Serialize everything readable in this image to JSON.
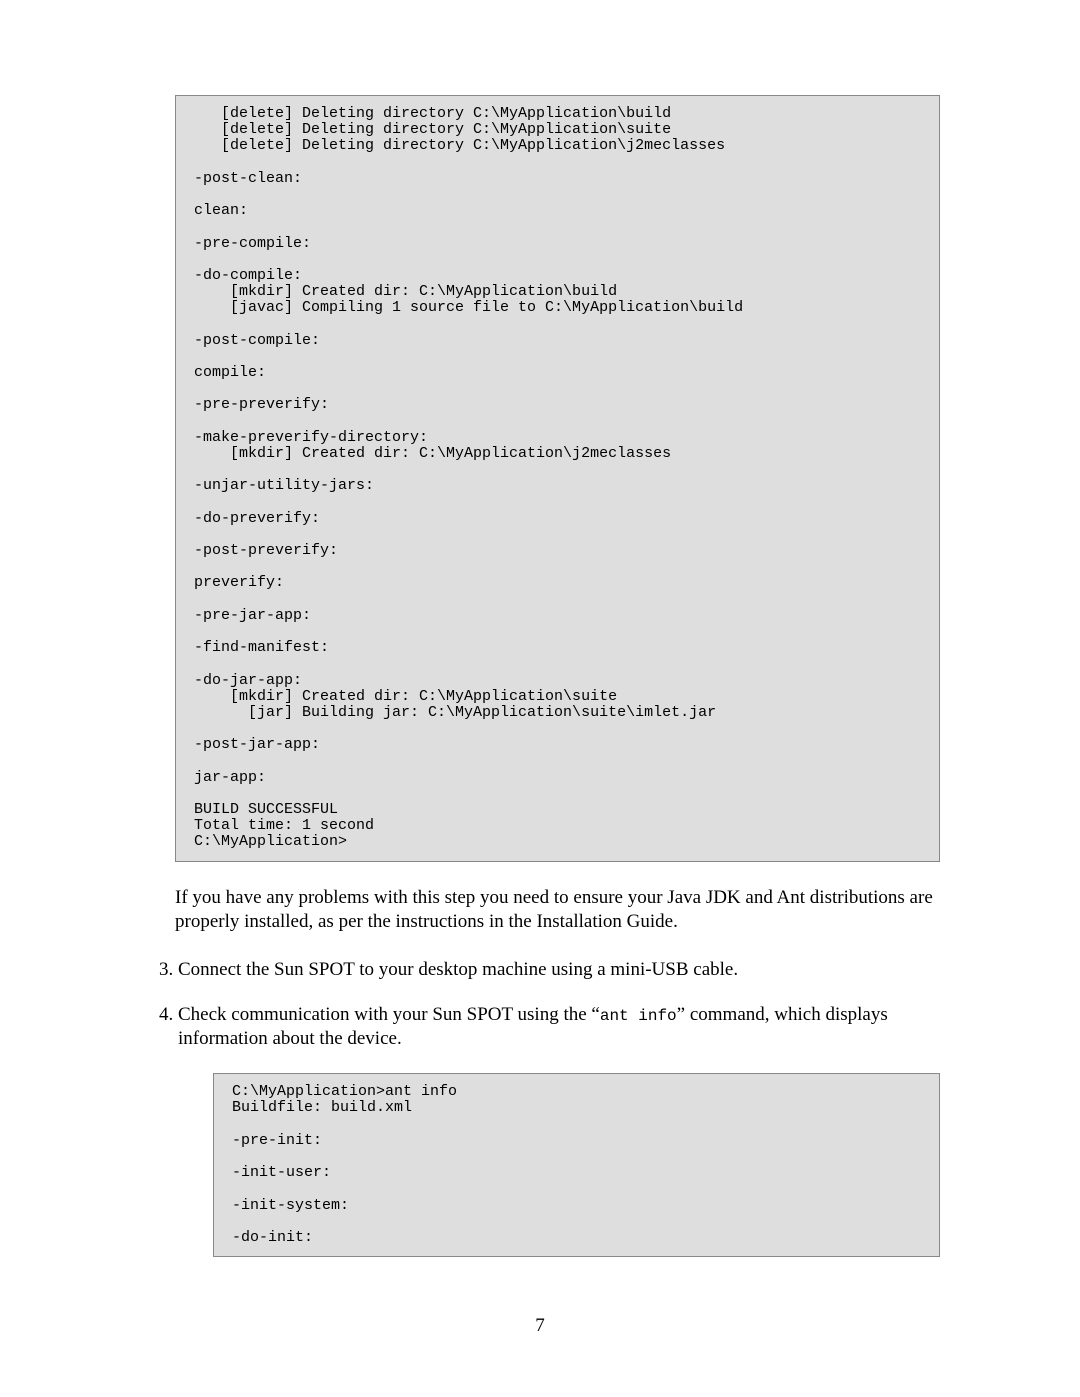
{
  "colors": {
    "page_bg": "#ffffff",
    "code_bg": "#dedede",
    "code_border": "#888888",
    "text": "#000000"
  },
  "typography": {
    "body_family": "Times New Roman",
    "body_size_pt": 12,
    "code_family": "Courier New",
    "code_size_pt": 10
  },
  "codeblock1": "   [delete] Deleting directory C:\\MyApplication\\build\n   [delete] Deleting directory C:\\MyApplication\\suite\n   [delete] Deleting directory C:\\MyApplication\\j2meclasses\n\n-post-clean:\n\nclean:\n\n-pre-compile:\n\n-do-compile:\n    [mkdir] Created dir: C:\\MyApplication\\build\n    [javac] Compiling 1 source file to C:\\MyApplication\\build\n\n-post-compile:\n\ncompile:\n\n-pre-preverify:\n\n-make-preverify-directory:\n    [mkdir] Created dir: C:\\MyApplication\\j2meclasses\n\n-unjar-utility-jars:\n\n-do-preverify:\n\n-post-preverify:\n\npreverify:\n\n-pre-jar-app:\n\n-find-manifest:\n\n-do-jar-app:\n    [mkdir] Created dir: C:\\MyApplication\\suite\n      [jar] Building jar: C:\\MyApplication\\suite\\imlet.jar\n\n-post-jar-app:\n\njar-app:\n\nBUILD SUCCESSFUL\nTotal time: 1 second\nC:\\MyApplication>",
  "paragraph_after_code1": "If you have any problems with this step you need to ensure your Java JDK and Ant distributions are properly installed, as per the instructions in the Installation Guide.",
  "list_start": 3,
  "step3": "Connect the Sun SPOT to your desktop machine using a mini-USB cable.",
  "step4_a": "Check communication with your Sun SPOT using the “",
  "step4_cmd": "ant info",
  "step4_b": "” command, which displays information about the device.",
  "codeblock2": "C:\\MyApplication>ant info\nBuildfile: build.xml\n\n-pre-init:\n\n-init-user:\n\n-init-system:\n\n-do-init:",
  "page_number": "7"
}
